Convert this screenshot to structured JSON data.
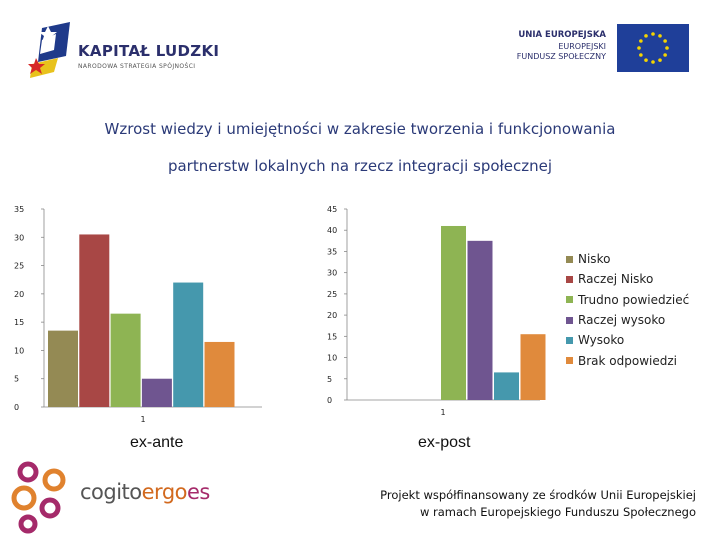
{
  "logos": {
    "kapital_title": "KAPITAŁ LUDZKI",
    "kapital_subtitle": "NARODOWA STRATEGIA SPÓJNOŚCI",
    "ue_line1": "UNIA EUROPEJSKA",
    "ue_line2": "EUROPEJSKI",
    "ue_line3": "FUNDUSZ SPOŁECZNY",
    "cogito_a": "cogito",
    "cogito_b": "ergo",
    "cogito_c": "es"
  },
  "title_line1": "Wzrost wiedzy i umiejętności w zakresie tworzenia i funkcjonowania",
  "title_line2": "partnerstw lokalnych na rzecz integracji społecznej",
  "chart_data": [
    {
      "type": "bar",
      "categories": [
        "1"
      ],
      "period_label": "ex-ante",
      "ylim": [
        0,
        35
      ],
      "yticks": [
        0,
        5,
        10,
        15,
        20,
        25,
        30,
        35
      ],
      "grid": false,
      "series": [
        {
          "name": "Nisko",
          "values": [
            13.5
          ],
          "color": "#948a54"
        },
        {
          "name": "Raczej Nisko",
          "values": [
            30.5
          ],
          "color": "#a84745"
        },
        {
          "name": "Trudno powiedzieć",
          "values": [
            16.5
          ],
          "color": "#8eb453"
        },
        {
          "name": "Raczej wysoko",
          "values": [
            5
          ],
          "color": "#6f5590"
        },
        {
          "name": "Wysoko",
          "values": [
            22
          ],
          "color": "#4598ad"
        },
        {
          "name": "Brak odpowiedzi",
          "values": [
            11.5
          ],
          "color": "#e08a3c"
        }
      ]
    },
    {
      "type": "bar",
      "categories": [
        "1"
      ],
      "period_label": "ex-post",
      "ylim": [
        0,
        45
      ],
      "yticks": [
        0,
        5,
        10,
        15,
        20,
        25,
        30,
        35,
        40,
        45
      ],
      "grid": false,
      "legend_position": "right",
      "series": [
        {
          "name": "Nisko",
          "values": [
            0
          ],
          "color": "#948a54"
        },
        {
          "name": "Raczej Nisko",
          "values": [
            0
          ],
          "color": "#a84745"
        },
        {
          "name": "Trudno powiedzieć",
          "values": [
            41
          ],
          "color": "#8eb453"
        },
        {
          "name": "Raczej wysoko",
          "values": [
            37.5
          ],
          "color": "#6f5590"
        },
        {
          "name": "Wysoko",
          "values": [
            6.5
          ],
          "color": "#4598ad"
        },
        {
          "name": "Brak odpowiedzi",
          "values": [
            15.5
          ],
          "color": "#e08a3c"
        }
      ]
    }
  ],
  "legend": [
    {
      "label": "Nisko",
      "color": "#948a54"
    },
    {
      "label": "Raczej Nisko",
      "color": "#a84745"
    },
    {
      "label": "Trudno powiedzieć",
      "color": "#8eb453"
    },
    {
      "label": "Raczej wysoko",
      "color": "#6f5590"
    },
    {
      "label": "Wysoko",
      "color": "#4598ad"
    },
    {
      "label": "Brak odpowiedzi",
      "color": "#e08a3c"
    }
  ],
  "footer_line1": "Projekt współfinansowany ze środków Unii Europejskiej",
  "footer_line2": "w ramach Europejskiego Funduszu Społecznego"
}
